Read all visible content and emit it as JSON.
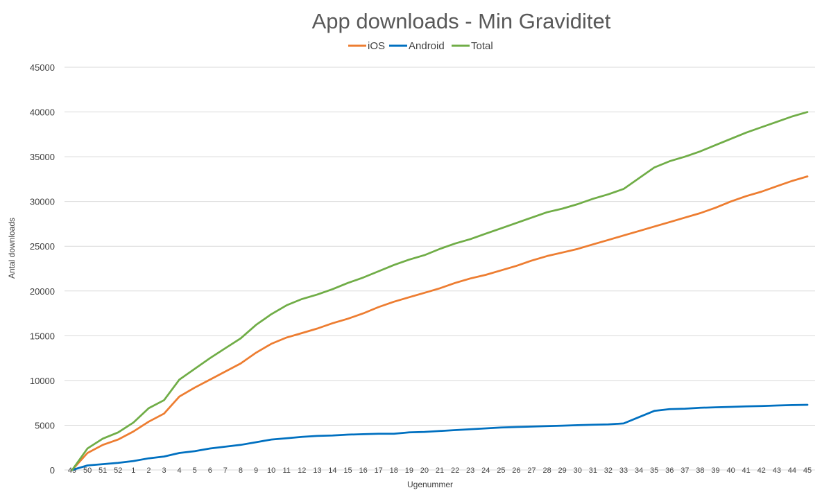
{
  "chart_data": {
    "type": "line",
    "title": "App downloads - Min Graviditet",
    "xlabel": "Ugenummer",
    "ylabel": "Antal downloads",
    "ylim": [
      0,
      45000
    ],
    "y_ticks": [
      0,
      5000,
      10000,
      15000,
      20000,
      25000,
      30000,
      35000,
      40000,
      45000
    ],
    "grid": true,
    "legend_position": "top",
    "categories": [
      "49",
      "50",
      "51",
      "52",
      "1",
      "2",
      "3",
      "4",
      "5",
      "6",
      "7",
      "8",
      "9",
      "10",
      "11",
      "12",
      "13",
      "14",
      "15",
      "16",
      "17",
      "18",
      "19",
      "20",
      "21",
      "22",
      "23",
      "24",
      "25",
      "26",
      "27",
      "28",
      "29",
      "30",
      "31",
      "32",
      "33",
      "34",
      "35",
      "36",
      "37",
      "38",
      "39",
      "40",
      "41",
      "42",
      "43",
      "44",
      "45"
    ],
    "series": [
      {
        "name": "iOS",
        "color": "#ed7d31",
        "values": [
          0,
          1900,
          2800,
          3400,
          4300,
          5400,
          6300,
          8200,
          9200,
          10100,
          11000,
          11900,
          13100,
          14100,
          14800,
          15300,
          15800,
          16400,
          16900,
          17500,
          18200,
          18800,
          19300,
          19800,
          20300,
          20900,
          21400,
          21800,
          22300,
          22800,
          23400,
          23900,
          24300,
          24700,
          25200,
          25700,
          26200,
          26700,
          27200,
          27700,
          28200,
          28700,
          29300,
          30000,
          30600,
          31100,
          31700,
          32300,
          32800
        ]
      },
      {
        "name": "Android",
        "color": "#0070c0",
        "values": [
          0,
          500,
          650,
          800,
          1000,
          1300,
          1500,
          1900,
          2100,
          2400,
          2600,
          2800,
          3100,
          3400,
          3550,
          3700,
          3800,
          3850,
          3950,
          4000,
          4050,
          4050,
          4200,
          4250,
          4350,
          4450,
          4550,
          4650,
          4750,
          4800,
          4850,
          4900,
          4950,
          5000,
          5050,
          5100,
          5200,
          5900,
          6600,
          6800,
          6850,
          6950,
          7000,
          7050,
          7100,
          7150,
          7200,
          7250,
          7280
        ]
      },
      {
        "name": "Total",
        "color": "#70ad47",
        "values": [
          0,
          2400,
          3500,
          4200,
          5300,
          6900,
          7800,
          10100,
          11300,
          12500,
          13600,
          14700,
          16200,
          17400,
          18400,
          19100,
          19600,
          20200,
          20900,
          21500,
          22200,
          22900,
          23500,
          24000,
          24700,
          25300,
          25800,
          26400,
          27000,
          27600,
          28200,
          28800,
          29200,
          29700,
          30300,
          30800,
          31400,
          32600,
          33800,
          34500,
          35000,
          35600,
          36300,
          37000,
          37700,
          38300,
          38900,
          39500,
          40000
        ]
      }
    ]
  }
}
